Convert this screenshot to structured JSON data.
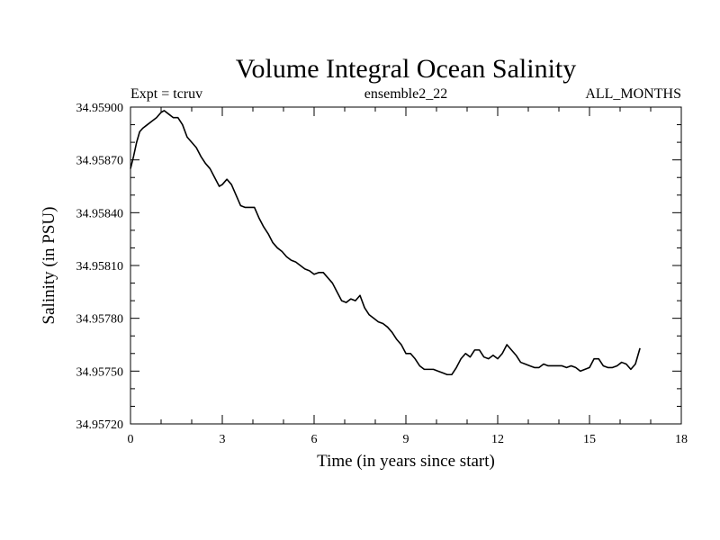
{
  "chart_data": {
    "type": "line",
    "title": "Volume Integral Ocean Salinity",
    "subtitle_left": "Expt = tcruv",
    "subtitle_center": "ensemble2_22",
    "subtitle_right": "ALL_MONTHS",
    "xlabel": "Time (in years since start)",
    "ylabel": "Salinity (in PSU)",
    "xlim": [
      0,
      18
    ],
    "ylim": [
      34.9572,
      34.959
    ],
    "xticks": [
      0,
      3,
      6,
      9,
      12,
      15,
      18
    ],
    "yticks": [
      34.9572,
      34.9575,
      34.9578,
      34.9581,
      34.9584,
      34.9587,
      34.959
    ],
    "ytick_labels": [
      "34.95720",
      "34.95750",
      "34.95780",
      "34.95810",
      "34.95840",
      "34.95870",
      "34.95900"
    ],
    "grid": false,
    "legend": "none",
    "series": [
      {
        "color": "#000000",
        "x": [
          0.0,
          0.1,
          0.2,
          0.3,
          0.4,
          0.55,
          0.7,
          0.85,
          1.0,
          1.1,
          1.25,
          1.4,
          1.55,
          1.7,
          1.85,
          2.0,
          2.15,
          2.3,
          2.45,
          2.6,
          2.75,
          2.9,
          3.0,
          3.15,
          3.3,
          3.45,
          3.6,
          3.75,
          3.9,
          4.05,
          4.2,
          4.35,
          4.5,
          4.65,
          4.8,
          4.95,
          5.1,
          5.25,
          5.4,
          5.55,
          5.7,
          5.85,
          6.0,
          6.15,
          6.3,
          6.45,
          6.6,
          6.75,
          6.9,
          7.05,
          7.2,
          7.35,
          7.5,
          7.65,
          7.8,
          7.95,
          8.1,
          8.25,
          8.4,
          8.55,
          8.7,
          8.85,
          9.0,
          9.15,
          9.3,
          9.45,
          9.6,
          9.75,
          9.9,
          10.05,
          10.2,
          10.35,
          10.5,
          10.65,
          10.8,
          10.95,
          11.1,
          11.25,
          11.4,
          11.55,
          11.7,
          11.85,
          12.0,
          12.15,
          12.3,
          12.45,
          12.6,
          12.75,
          12.9,
          13.05,
          13.2,
          13.35,
          13.5,
          13.65,
          13.8,
          13.95,
          14.1,
          14.25,
          14.4,
          14.55,
          14.7,
          14.85,
          15.0,
          15.15,
          15.3,
          15.45,
          15.6,
          15.75,
          15.9,
          16.05,
          16.2,
          16.35,
          16.5,
          16.65
        ],
        "y": [
          34.95865,
          34.95872,
          34.9588,
          34.95886,
          34.95888,
          34.9589,
          34.95892,
          34.95894,
          34.95897,
          34.95898,
          34.95896,
          34.95894,
          34.95894,
          34.9589,
          34.95883,
          34.9588,
          34.95877,
          34.95872,
          34.95868,
          34.95865,
          34.9586,
          34.95855,
          34.95856,
          34.95859,
          34.95856,
          34.9585,
          34.95844,
          34.95843,
          34.95843,
          34.95843,
          34.95837,
          34.95832,
          34.95828,
          34.95823,
          34.9582,
          34.95818,
          34.95815,
          34.95813,
          34.95812,
          34.9581,
          34.95808,
          34.95807,
          34.95805,
          34.95806,
          34.95806,
          34.95803,
          34.958,
          34.95795,
          34.9579,
          34.95789,
          34.95791,
          34.9579,
          34.95793,
          34.95786,
          34.95782,
          34.9578,
          34.95778,
          34.95777,
          34.95775,
          34.95772,
          34.95768,
          34.95765,
          34.9576,
          34.9576,
          34.95757,
          34.95753,
          34.95751,
          34.95751,
          34.95751,
          34.9575,
          34.95749,
          34.95748,
          34.95748,
          34.95752,
          34.95757,
          34.9576,
          34.95758,
          34.95762,
          34.95762,
          34.95758,
          34.95757,
          34.95759,
          34.95757,
          34.9576,
          34.95765,
          34.95762,
          34.95759,
          34.95755,
          34.95754,
          34.95753,
          34.95752,
          34.95752,
          34.95754,
          34.95753,
          34.95753,
          34.95753,
          34.95753,
          34.95752,
          34.95753,
          34.95752,
          34.9575,
          34.95751,
          34.95752,
          34.95757,
          34.95757,
          34.95753,
          34.95752,
          34.95752,
          34.95753,
          34.95755,
          34.95754,
          34.95751,
          34.95754,
          34.95763
        ]
      }
    ]
  }
}
